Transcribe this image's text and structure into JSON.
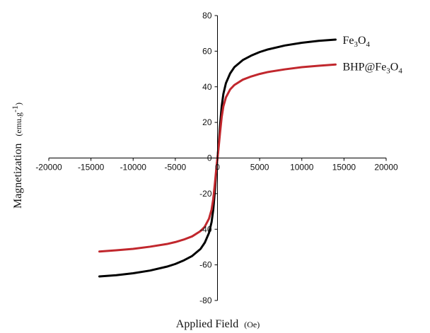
{
  "chart_data": {
    "type": "line",
    "title": "",
    "xlabel": {
      "main": "Applied Field",
      "unit": "(Oe)"
    },
    "ylabel": {
      "main": "Magnetization",
      "unit_prefix": "(emu.g",
      "unit_sup": "-1",
      "unit_suffix": ")"
    },
    "xlim": [
      -20000,
      20000
    ],
    "ylim": [
      -80,
      80
    ],
    "x_ticks": [
      -20000,
      -15000,
      -10000,
      -5000,
      0,
      5000,
      10000,
      15000,
      20000
    ],
    "x_tick_labels": [
      "-20000",
      "-15000",
      "-10000",
      "-5000",
      "0",
      "5000",
      "10000",
      "15000",
      "20000"
    ],
    "y_ticks": [
      -80,
      -60,
      -40,
      -20,
      0,
      20,
      40,
      60,
      80
    ],
    "y_tick_labels": [
      "-80",
      "-60",
      "-40",
      "-20",
      "0",
      "20",
      "40",
      "60",
      "80"
    ],
    "grid": false,
    "legend": "inline labels at right end of each curve",
    "series": [
      {
        "name": "Fe3O4",
        "label_parts": [
          "Fe",
          "3",
          "O",
          "4"
        ],
        "color": "#000000",
        "x": [
          -14000,
          -12000,
          -10000,
          -8000,
          -6000,
          -5000,
          -4000,
          -3000,
          -2000,
          -1500,
          -1000,
          -700,
          -500,
          -300,
          -150,
          -50,
          0,
          50,
          150,
          300,
          500,
          700,
          1000,
          1500,
          2000,
          3000,
          4000,
          5000,
          6000,
          8000,
          10000,
          12000,
          14000
        ],
        "y": [
          -66.5,
          -65.8,
          -64.7,
          -63.2,
          -61.0,
          -59.5,
          -57.5,
          -55.0,
          -51.0,
          -47.5,
          -42.0,
          -36.0,
          -29.0,
          -18.0,
          -8.0,
          -2.5,
          0,
          2.5,
          8.0,
          18.0,
          29.0,
          36.0,
          42.0,
          47.5,
          51.0,
          55.0,
          57.5,
          59.5,
          61.0,
          63.2,
          64.7,
          65.8,
          66.5
        ]
      },
      {
        "name": "BHP@Fe3O4",
        "label_parts": [
          "BHP@Fe",
          "3",
          "O",
          "4"
        ],
        "color": "#c1272d",
        "x": [
          -14000,
          -12000,
          -10000,
          -8000,
          -6000,
          -5000,
          -4000,
          -3000,
          -2000,
          -1500,
          -1000,
          -700,
          -500,
          -300,
          -150,
          -50,
          0,
          50,
          150,
          300,
          500,
          700,
          1000,
          1500,
          2000,
          3000,
          4000,
          5000,
          6000,
          8000,
          10000,
          12000,
          14000
        ],
        "y": [
          -52.5,
          -51.8,
          -51.0,
          -49.8,
          -48.3,
          -47.2,
          -45.8,
          -44.0,
          -41.0,
          -38.5,
          -34.0,
          -29.0,
          -23.0,
          -14.0,
          -6.5,
          -2.0,
          0,
          2.0,
          6.5,
          14.0,
          23.0,
          29.0,
          34.0,
          38.5,
          41.0,
          44.0,
          45.8,
          47.2,
          48.3,
          49.8,
          51.0,
          51.8,
          52.5
        ]
      }
    ]
  }
}
